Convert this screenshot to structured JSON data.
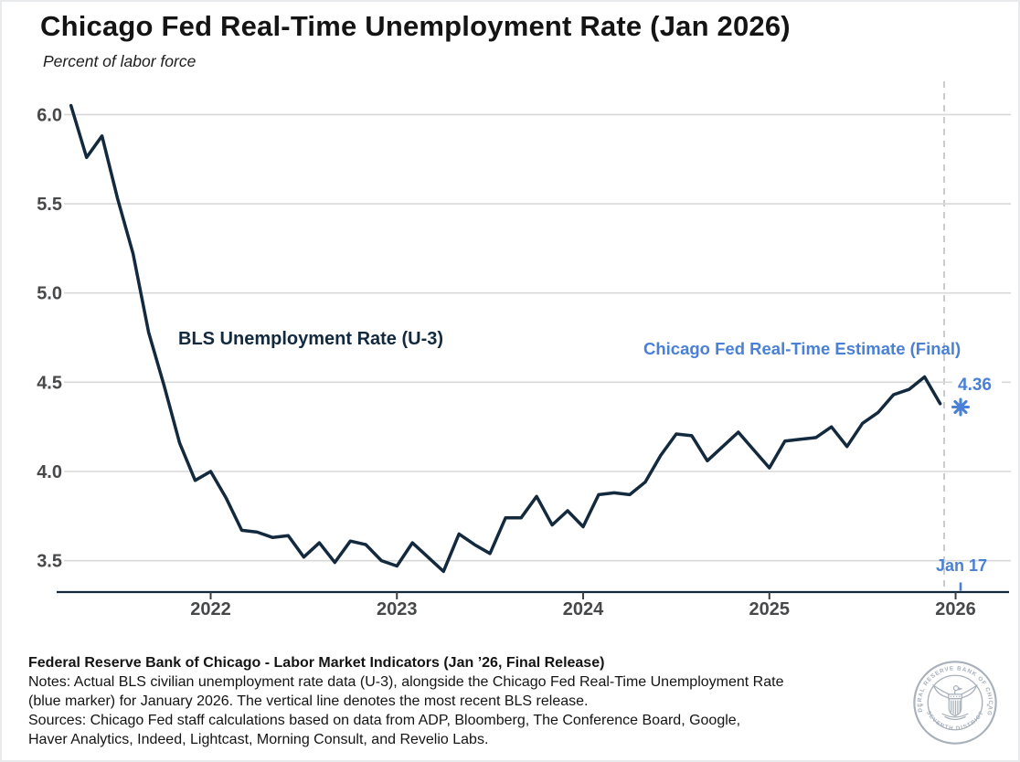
{
  "title": "Chicago Fed Real-Time Unemployment Rate (Jan 2026)",
  "subtitle": "Percent of labor force",
  "chart_data": {
    "type": "line",
    "title": "Chicago Fed Real-Time Unemployment Rate (Jan 2026)",
    "ylabel": "Percent of labor force",
    "ylim": [
      3.3,
      6.1
    ],
    "grid": "horizontal",
    "y_axis": {
      "tick_values": [
        6.0,
        5.5,
        5.0,
        4.5,
        4.0,
        3.5
      ],
      "tick_labels": [
        "6.0",
        "5.5",
        "5.0",
        "4.5",
        "4.0",
        "3.5"
      ]
    },
    "x_axis": {
      "tick_labels": [
        "2022",
        "2023",
        "2024",
        "2025",
        "2026"
      ]
    },
    "series": [
      {
        "name": "BLS Unemployment Rate (U-3)",
        "color": "#13293e",
        "frequency": "monthly",
        "start_month": "2021-04",
        "end_month": "2025-12",
        "values": [
          6.05,
          5.76,
          5.88,
          5.53,
          5.22,
          4.78,
          4.48,
          4.16,
          3.95,
          4.0,
          3.85,
          3.67,
          3.66,
          3.63,
          3.64,
          3.52,
          3.6,
          3.49,
          3.61,
          3.59,
          3.5,
          3.47,
          3.6,
          3.52,
          3.44,
          3.65,
          3.59,
          3.54,
          3.74,
          3.74,
          3.86,
          3.7,
          3.78,
          3.69,
          3.87,
          3.88,
          3.87,
          3.94,
          4.09,
          4.21,
          4.2,
          4.06,
          4.14,
          4.22,
          4.12,
          4.02,
          4.17,
          4.18,
          4.19,
          4.25,
          4.14,
          4.27,
          4.33,
          4.43,
          4.46,
          4.53,
          4.38
        ]
      }
    ],
    "marker": {
      "name": "Chicago Fed Real-Time Estimate (Final)",
      "value": 4.36,
      "label": "4.36",
      "date_label": "Jan 17",
      "color": "#4a80d6",
      "shape": "asterisk"
    },
    "annotations": {
      "vertical_dashed_line": "most recent BLS release"
    }
  },
  "footer": {
    "title": "Federal Reserve Bank of Chicago - Labor Market Indicators (Jan ’26, Final Release)",
    "notes_lines": [
      "Notes: Actual BLS civilian unemployment rate data (U-3), alongside the Chicago Fed Real-Time Unemployment Rate",
      "(blue marker) for January 2026. The vertical line denotes the most recent BLS release."
    ],
    "sources_lines": [
      "Sources: Chicago Fed staff calculations based on data from ADP, Bloomberg, The Conference Board, Google,",
      "Haver Analytics, Indeed, Lightcast, Morning Consult, and Revelio Labs."
    ]
  },
  "logo": {
    "ring_text": "FEDERAL RESERVE BANK OF CHICAGO",
    "bottom_text": "SEVENTH DISTRICT"
  },
  "colors": {
    "line_navy": "#13293e",
    "estimate_blue": "#4a80d6",
    "gridline": "#d8d8d8",
    "dashed_line": "#c2c4c6",
    "axis_label_gray": "#47484a",
    "seal_gray": "#a8b0ba"
  }
}
